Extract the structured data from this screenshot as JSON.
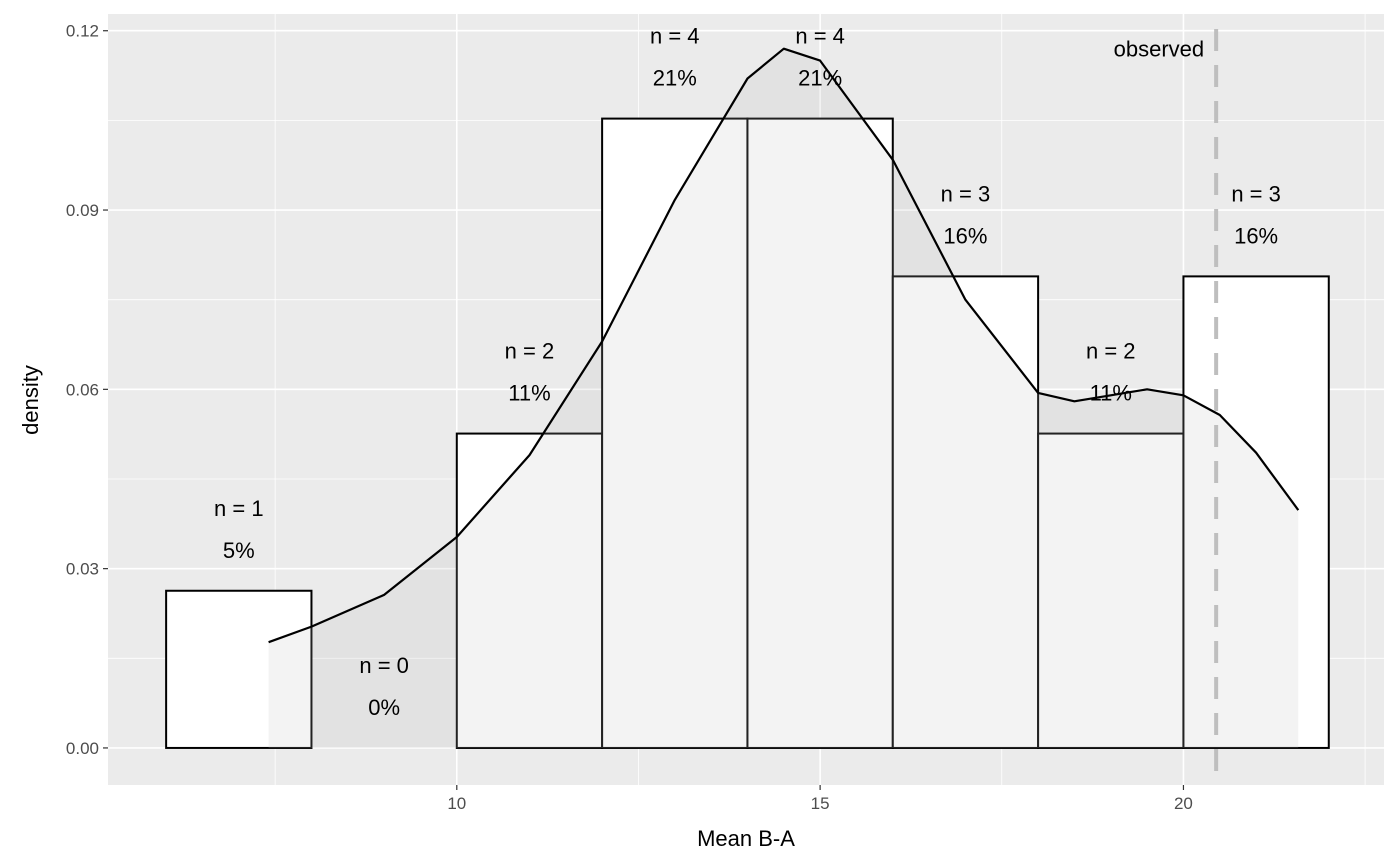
{
  "chart_data": {
    "type": "bar",
    "subtype": "histogram with density curve",
    "xlabel": "Mean B-A",
    "ylabel": "density",
    "xlim": [
      5.2,
      22.76
    ],
    "ylim": [
      -0.0062,
      0.1228
    ],
    "x_ticks": [
      10,
      15,
      20
    ],
    "x_tick_labels": [
      "10",
      "15",
      "20"
    ],
    "y_ticks": [
      0,
      0.03,
      0.06,
      0.09,
      0.12
    ],
    "y_tick_labels": [
      "0.00",
      "0.03",
      "0.06",
      "0.09",
      "0.12"
    ],
    "grid": true,
    "bins": [
      {
        "x0": 6,
        "x1": 8,
        "density": 0.0263,
        "count_label": "n = 1",
        "pct_label": "5%"
      },
      {
        "x0": 8,
        "x1": 10,
        "density": 0,
        "count_label": "n = 0",
        "pct_label": "0%"
      },
      {
        "x0": 10,
        "x1": 12,
        "density": 0.0526,
        "count_label": "n = 2",
        "pct_label": "11%"
      },
      {
        "x0": 12,
        "x1": 14,
        "density": 0.1053,
        "count_label": "n = 4",
        "pct_label": "21%"
      },
      {
        "x0": 14,
        "x1": 16,
        "density": 0.1053,
        "count_label": "n = 4",
        "pct_label": "21%"
      },
      {
        "x0": 16,
        "x1": 18,
        "density": 0.0789,
        "count_label": "n = 3",
        "pct_label": "16%"
      },
      {
        "x0": 18,
        "x1": 20,
        "density": 0.0526,
        "count_label": "n = 2",
        "pct_label": "11%"
      },
      {
        "x0": 20,
        "x1": 22,
        "density": 0.0789,
        "count_label": "n = 3",
        "pct_label": "16%"
      }
    ],
    "density_curve": {
      "x": [
        7.41,
        8,
        9,
        10,
        11,
        12,
        13,
        14,
        14.5,
        15,
        16,
        17,
        18,
        18.5,
        19,
        19.5,
        20,
        20.5,
        21,
        21.58
      ],
      "y": [
        0.0177,
        0.0203,
        0.0256,
        0.0353,
        0.049,
        0.068,
        0.0917,
        0.112,
        0.117,
        0.115,
        0.0984,
        0.075,
        0.0594,
        0.058,
        0.059,
        0.06,
        0.059,
        0.0557,
        0.0494,
        0.0398
      ]
    },
    "observed": {
      "x": 20.45,
      "label": "observed",
      "label_y": 0.117
    },
    "colors": {
      "panel": "#ebebeb",
      "bar_fill": "#ffffff",
      "bar_outline": "#000000",
      "density_fill": "#bebebe",
      "observed_line": "#bebebe",
      "curve": "#000000"
    }
  }
}
